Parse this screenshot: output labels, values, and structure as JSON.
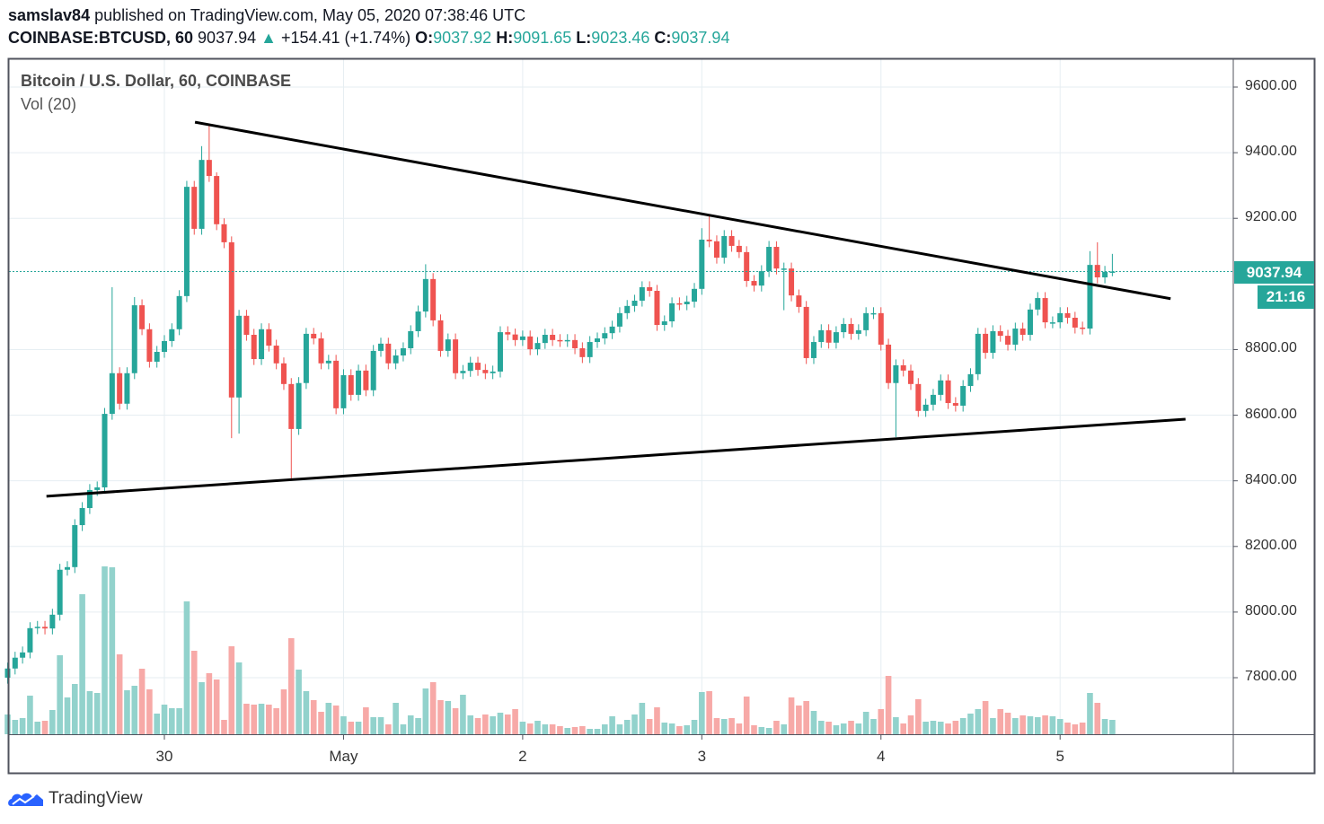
{
  "header": {
    "author": "samslav84",
    "published": "published on TradingView.com, May 05, 2020 07:38:46 UTC",
    "symbol": "COINBASE:BTCUSD, 60",
    "last": "9037.94",
    "change": "+154.41 (+1.74%)",
    "o_label": "O:",
    "o": "9037.92",
    "h_label": "H:",
    "h": "9091.65",
    "l_label": "L:",
    "l": "9023.46",
    "c_label": "C:",
    "c": "9037.94"
  },
  "legend": {
    "title": "Bitcoin / U.S. Dollar, 60, COINBASE",
    "volume": "Vol (20)"
  },
  "price_tag": {
    "price": "9037.94",
    "countdown": "21:16"
  },
  "footer": {
    "brand": "TradingView"
  },
  "colors": {
    "up": "#26a69a",
    "down": "#ef5350",
    "up_vol": "#92d2cc",
    "down_vol": "#f7a9a7",
    "grid": "#e6eef2",
    "trendline": "#000000"
  },
  "chart_data": {
    "type": "candlestick",
    "title": "Bitcoin / U.S. Dollar, 60, COINBASE",
    "interval": "60",
    "ylim": [
      7650,
      9700
    ],
    "yticks": [
      "9600.00",
      "9400.00",
      "9200.00",
      "8800.00",
      "8600.00",
      "8400.00",
      "8200.00",
      "8000.00",
      "7800.00"
    ],
    "ytick_values": [
      9600,
      9400,
      9200,
      8800,
      8600,
      8400,
      8200,
      8000,
      7800
    ],
    "xticks": [
      {
        "label": "30",
        "index": 21
      },
      {
        "label": "May",
        "index": 45
      },
      {
        "label": "2",
        "index": 69
      },
      {
        "label": "3",
        "index": 93
      },
      {
        "label": "4",
        "index": 117
      },
      {
        "label": "5",
        "index": 141
      }
    ],
    "first_open": 7800,
    "close": [
      7828,
      7861,
      7877,
      7951,
      7955,
      7950,
      7992,
      8129,
      8137,
      8265,
      8317,
      8372,
      8380,
      8604,
      8728,
      8635,
      8728,
      8935,
      8862,
      8763,
      8793,
      8826,
      8862,
      8963,
      9296,
      9168,
      9378,
      9329,
      9182,
      9127,
      8654,
      8903,
      8845,
      8771,
      8862,
      8812,
      8758,
      8695,
      8558,
      8698,
      8848,
      8834,
      8758,
      8766,
      8621,
      8722,
      8662,
      8736,
      8676,
      8796,
      8818,
      8758,
      8782,
      8804,
      8856,
      8916,
      9015,
      8889,
      8796,
      8831,
      8728,
      8735,
      8760,
      8738,
      8728,
      8733,
      8853,
      8846,
      8829,
      8840,
      8801,
      8820,
      8845,
      8829,
      8826,
      8829,
      8804,
      8777,
      8823,
      8834,
      8850,
      8870,
      8911,
      8933,
      8949,
      8990,
      8979,
      8875,
      8886,
      8941,
      8938,
      8946,
      8985,
      9135,
      9130,
      9080,
      9146,
      9116,
      9097,
      9009,
      8995,
      9039,
      9113,
      9047,
      9047,
      8965,
      8930,
      8774,
      8823,
      8859,
      8821,
      8853,
      8878,
      8848,
      8859,
      8911,
      8911,
      8815,
      8698,
      8752,
      8736,
      8695,
      8613,
      8632,
      8662,
      8706,
      8637,
      8629,
      8689,
      8725,
      8848,
      8790,
      8856,
      8842,
      8815,
      8864,
      8845,
      8922,
      8957,
      8883,
      8883,
      8911,
      8897,
      8867,
      8864,
      9058,
      9020,
      9037,
      9037.94
    ],
    "wick_overrides": [
      {
        "i": 14,
        "h": 8990
      },
      {
        "i": 17,
        "h": 8960
      },
      {
        "i": 26,
        "h": 9420
      },
      {
        "i": 27,
        "h": 9482
      },
      {
        "i": 28,
        "h": 9340
      },
      {
        "i": 30,
        "l": 8530
      },
      {
        "i": 31,
        "l": 8544
      },
      {
        "i": 38,
        "l": 8407
      },
      {
        "i": 56,
        "h": 9060
      },
      {
        "i": 93,
        "h": 9170
      },
      {
        "i": 94,
        "h": 9209
      },
      {
        "i": 103,
        "h": 9130
      },
      {
        "i": 104,
        "l": 8920
      },
      {
        "i": 119,
        "l": 8533
      },
      {
        "i": 145,
        "h": 9100
      },
      {
        "i": 146,
        "h": 9127
      },
      {
        "i": 148,
        "h": 9091.65,
        "l": 9023.46
      }
    ],
    "volume_relative": [
      22,
      16,
      18,
      43,
      14,
      15,
      27,
      88,
      41,
      56,
      156,
      48,
      46,
      187,
      186,
      89,
      49,
      54,
      73,
      50,
      23,
      33,
      29,
      29,
      148,
      93,
      58,
      68,
      61,
      16,
      98,
      80,
      34,
      33,
      34,
      33,
      29,
      50,
      107,
      72,
      48,
      38,
      25,
      35,
      32,
      20,
      14,
      14,
      30,
      19,
      19,
      11,
      35,
      11,
      21,
      18,
      51,
      58,
      38,
      37,
      29,
      44,
      21,
      18,
      22,
      20,
      24,
      22,
      28,
      14,
      12,
      15,
      11,
      11,
      9,
      7,
      8,
      9,
      6,
      6,
      11,
      20,
      11,
      16,
      22,
      35,
      17,
      30,
      13,
      12,
      9,
      10,
      16,
      47,
      48,
      18,
      17,
      18,
      12,
      42,
      10,
      8,
      7,
      15,
      11,
      41,
      32,
      37,
      26,
      15,
      14,
      10,
      12,
      15,
      12,
      25,
      17,
      28,
      65,
      19,
      12,
      21,
      39,
      14,
      15,
      14,
      12,
      15,
      18,
      23,
      28,
      37,
      18,
      28,
      24,
      18,
      21,
      20,
      19,
      21,
      20,
      17,
      13,
      11,
      13,
      46,
      35,
      17,
      16
    ],
    "trendlines": [
      {
        "name": "upper-resistance",
        "from": {
          "index": 25.1,
          "price": 9493
        },
        "to": {
          "index": 155.8,
          "price": 8955
        }
      },
      {
        "name": "lower-support",
        "from": {
          "index": 5.2,
          "price": 8353
        },
        "to": {
          "index": 157.8,
          "price": 8588
        }
      }
    ],
    "last_price_line": 9037.94
  }
}
